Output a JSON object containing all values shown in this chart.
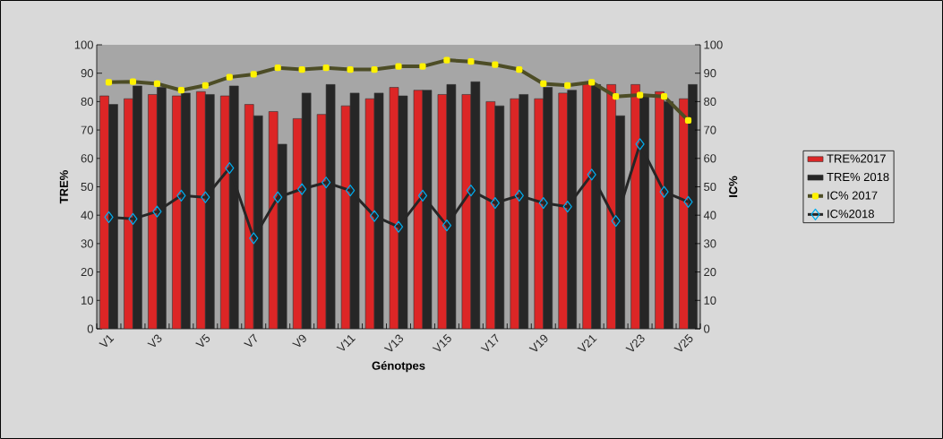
{
  "chart_data": {
    "type": "bar",
    "xlabel": "Génotpes",
    "ylabel": "TRE%",
    "y2label": "IC%",
    "categories": [
      "V1",
      null,
      "V3",
      null,
      "V5",
      null,
      "V7",
      null,
      "V9",
      null,
      "V11",
      null,
      "V13",
      null,
      "V15",
      null,
      "V17",
      null,
      "V19",
      null,
      "V21",
      null,
      "V23",
      null,
      "V25"
    ],
    "series": [
      {
        "name": "TRE%2017",
        "color": "#dc2626",
        "values": [
          82,
          81,
          82.5,
          82,
          83.5,
          82,
          79,
          76.5,
          74,
          75.5,
          78.5,
          81,
          85,
          84,
          82.5,
          82.5,
          80,
          81,
          81,
          83,
          86.5,
          86,
          86,
          83.5,
          81
        ]
      },
      {
        "name": "TRE% 2018",
        "color": "#262626",
        "values": [
          79,
          85.5,
          85,
          83,
          82.5,
          85.5,
          75,
          65,
          83,
          86,
          83,
          83,
          82,
          84,
          86,
          87,
          78.5,
          82.5,
          85,
          84,
          86,
          75,
          82,
          80,
          86
        ]
      },
      {
        "name": "IC% 2017",
        "type": "line",
        "axis": "y2",
        "color": "#4d4d26",
        "marker": "square",
        "values": [
          86.8,
          87,
          86.3,
          84,
          85.7,
          88.6,
          89.6,
          91.9,
          91.3,
          91.9,
          91.3,
          91.3,
          92.4,
          92.4,
          94.6,
          94.1,
          93,
          91.3,
          86.3,
          85.7,
          86.8,
          81.8,
          82.3,
          81.8,
          73.4
        ]
      },
      {
        "name": "IC%2018",
        "type": "line",
        "axis": "y2",
        "color": "#262626",
        "marker": "diamond",
        "values": [
          39.3,
          38.7,
          41.3,
          46.9,
          46.3,
          56.6,
          31.9,
          46.3,
          49.2,
          51.5,
          48.7,
          39.7,
          35.9,
          46.9,
          36.4,
          48.7,
          44.3,
          46.9,
          44.3,
          43,
          54.3,
          38,
          65,
          48.2,
          44.7
        ]
      }
    ],
    "ylim": [
      0,
      100
    ],
    "yticks": [
      0,
      10,
      20,
      30,
      40,
      50,
      60,
      70,
      80,
      90,
      100
    ],
    "y2lim": [
      0,
      100
    ],
    "y2ticks": [
      0,
      10,
      20,
      30,
      40,
      50,
      60,
      70,
      80,
      90,
      100
    ],
    "legend": "right",
    "grid": false
  }
}
